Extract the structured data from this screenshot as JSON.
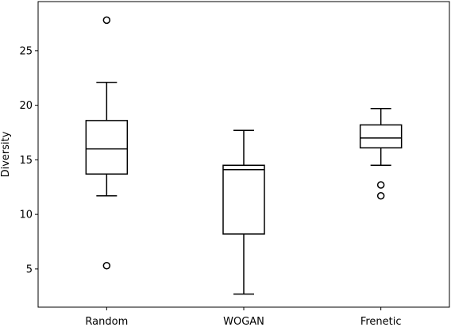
{
  "chart_data": {
    "type": "box",
    "title": "",
    "xlabel": "",
    "ylabel": "Diversity",
    "categories": [
      "Random",
      "WOGAN",
      "Frenetic"
    ],
    "ylim": [
      1.5,
      29.5
    ],
    "yticks": [
      5,
      10,
      15,
      20,
      25
    ],
    "grid": false,
    "series": [
      {
        "category": "Random",
        "whisker_low": 11.7,
        "q1": 13.7,
        "median": 16.0,
        "q3": 18.6,
        "whisker_high": 22.1,
        "outliers": [
          27.8,
          5.3
        ]
      },
      {
        "category": "WOGAN",
        "whisker_low": 2.7,
        "q1": 8.2,
        "median": 14.1,
        "q3": 14.5,
        "whisker_high": 17.7,
        "outliers": []
      },
      {
        "category": "Frenetic",
        "whisker_low": 14.5,
        "q1": 16.1,
        "median": 17.0,
        "q3": 18.2,
        "whisker_high": 19.7,
        "outliers": [
          12.7,
          11.7
        ]
      }
    ],
    "colors": {
      "stroke": "#000000",
      "background": "#ffffff"
    }
  }
}
